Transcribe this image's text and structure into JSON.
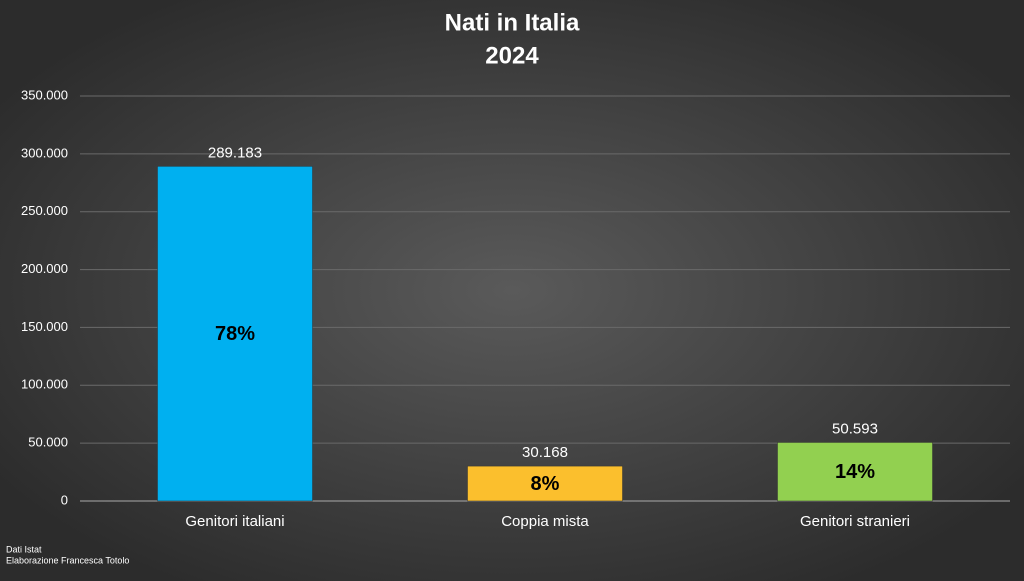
{
  "chart_data": {
    "type": "bar",
    "title": "Nati in Italia",
    "subtitle": "2024",
    "categories": [
      "Genitori italiani",
      "Coppia mista",
      "Genitori stranieri"
    ],
    "values": [
      289183,
      30168,
      50593
    ],
    "value_labels": [
      "289.183",
      "30.168",
      "50.593"
    ],
    "percent_values": [
      78,
      8,
      14
    ],
    "percent_labels": [
      "78%",
      "8%",
      "14%"
    ],
    "colors": [
      "#00b0f0",
      "#fbbf2d",
      "#92d050"
    ],
    "ylim": [
      0,
      350000
    ],
    "yticks": [
      0,
      {
        "value": 50000,
        "label": "50.000"
      },
      {
        "value": 100000,
        "label": "100.000"
      },
      {
        "value": 150000,
        "label": "150.000"
      },
      {
        "value": 200000,
        "label": "200.000"
      },
      {
        "value": 250000,
        "label": "250.000"
      },
      {
        "value": 300000,
        "label": "300.000"
      },
      {
        "value": 350000,
        "label": "350.000"
      }
    ],
    "grid": true,
    "source": [
      "Dati Istat",
      "Elaborazione Francesca Totolo"
    ]
  }
}
